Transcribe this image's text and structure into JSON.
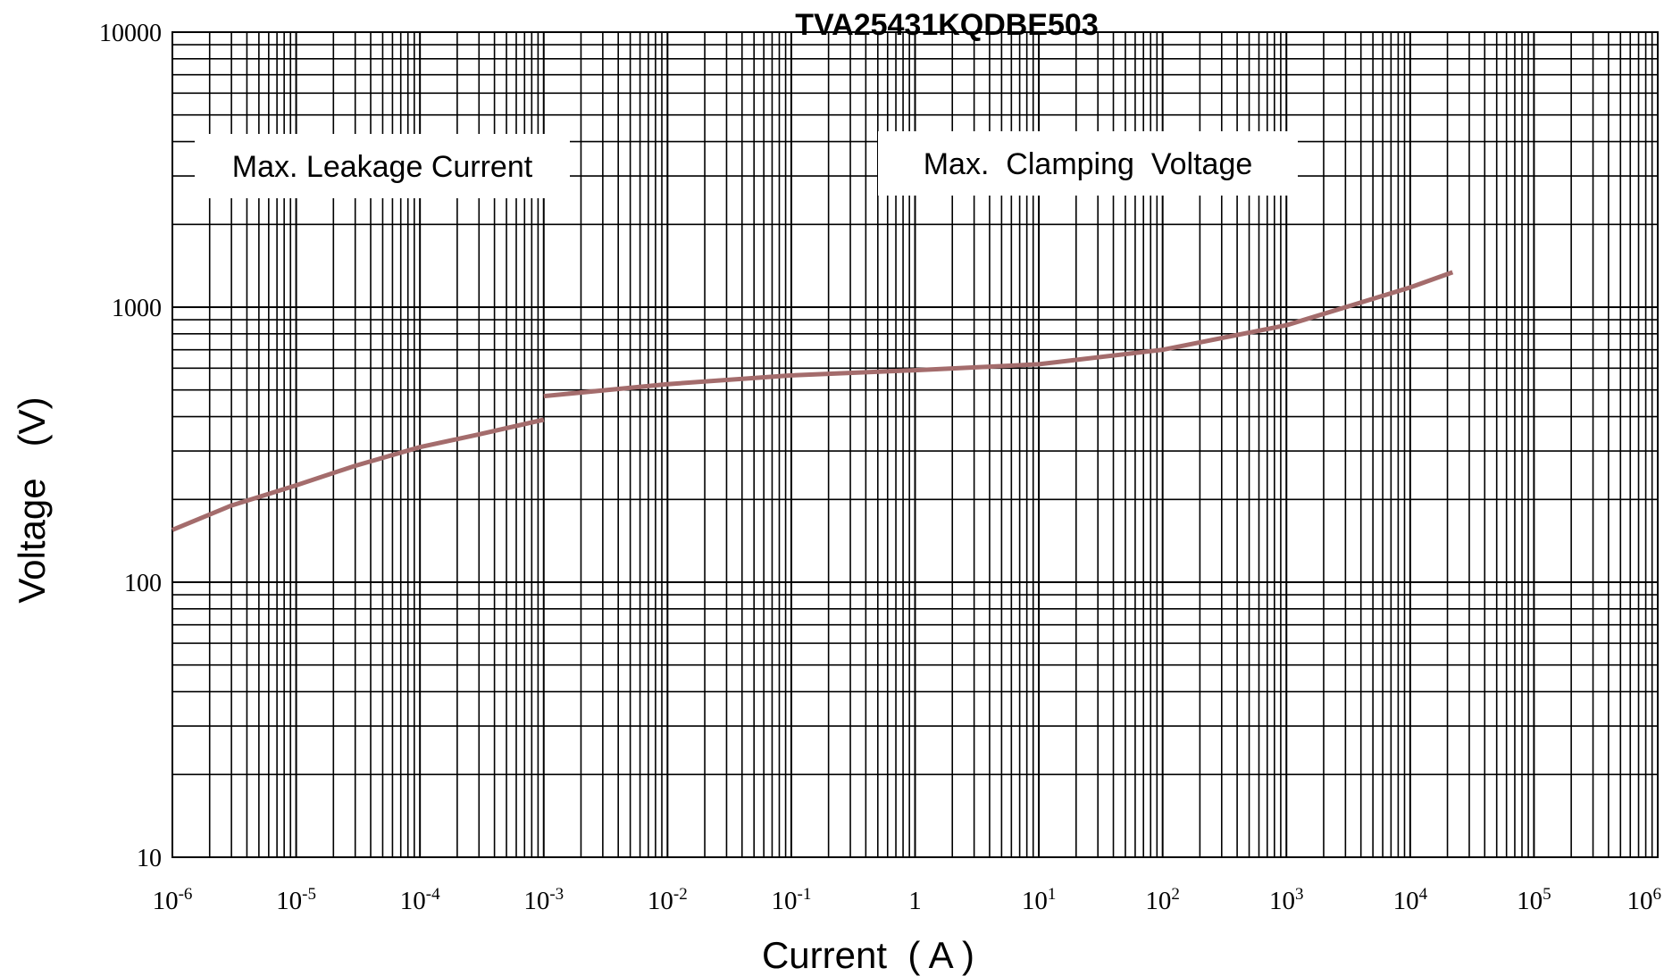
{
  "chart_data": {
    "type": "line",
    "title": "TVA25431KQDBE503",
    "xlabel": "Current  ( A )",
    "ylabel": "Voltage   (V)",
    "xscale": "log",
    "yscale": "log",
    "xlim": [
      1e-06,
      1000000
    ],
    "ylim": [
      10,
      10000
    ],
    "grid": true,
    "y_ticks": [
      {
        "value": 10,
        "label": "10"
      },
      {
        "value": 100,
        "label": "100"
      },
      {
        "value": 1000,
        "label": "1000"
      },
      {
        "value": 10000,
        "label": "10000"
      }
    ],
    "x_ticks": [
      {
        "value": 1e-06,
        "base": "10",
        "exp": "-6"
      },
      {
        "value": 1e-05,
        "base": "10",
        "exp": "-5"
      },
      {
        "value": 0.0001,
        "base": "10",
        "exp": "-4"
      },
      {
        "value": 0.001,
        "base": "10",
        "exp": "-3"
      },
      {
        "value": 0.01,
        "base": "10",
        "exp": "-2"
      },
      {
        "value": 0.1,
        "base": "10",
        "exp": "-1"
      },
      {
        "value": 1,
        "base": "1",
        "exp": ""
      },
      {
        "value": 10,
        "base": "10",
        "exp": "1"
      },
      {
        "value": 100,
        "base": "10",
        "exp": "2"
      },
      {
        "value": 1000,
        "base": "10",
        "exp": "3"
      },
      {
        "value": 10000,
        "base": "10",
        "exp": "4"
      },
      {
        "value": 100000,
        "base": "10",
        "exp": "5"
      },
      {
        "value": 1000000,
        "base": "10",
        "exp": "6"
      }
    ],
    "annotations": [
      {
        "text": "Max. Leakage Current",
        "x": 0.0001,
        "y": 4000
      },
      {
        "text": "Max.  Clamping  Voltage",
        "x": 20,
        "y": 4000
      }
    ],
    "series": [
      {
        "color": "#a46c6c",
        "segments": [
          {
            "x": [
              1e-06,
              3e-06,
              1e-05,
              3e-05,
              0.0001,
              0.0003,
              0.001
            ],
            "y": [
              155,
              190,
              225,
              265,
              310,
              345,
              390
            ]
          },
          {
            "x": [
              0.001,
              0.01,
              0.1,
              1,
              10,
              100,
              1000,
              10000,
              22000
            ],
            "y": [
              475,
              525,
              565,
              590,
              620,
              700,
              860,
              1180,
              1340
            ]
          }
        ]
      }
    ]
  }
}
